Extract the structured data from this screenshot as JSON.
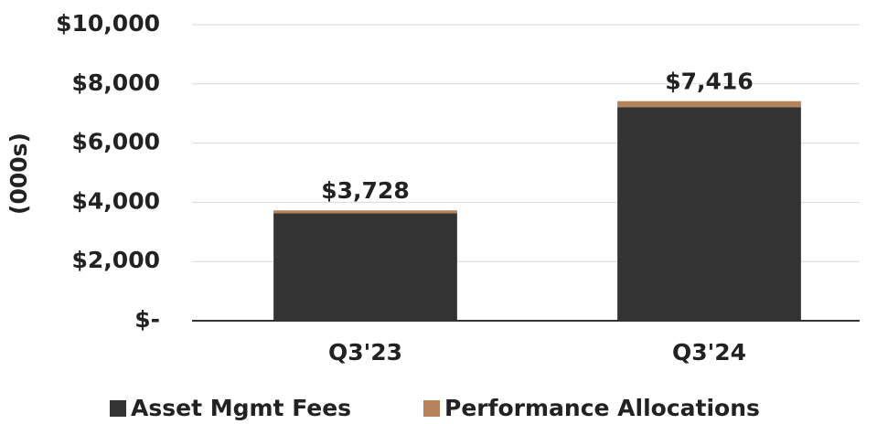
{
  "chart_data": {
    "type": "stacked_bar",
    "y_label": "(000s)",
    "categories": [
      "Q3'23",
      "Q3'24"
    ],
    "series": [
      {
        "name": "Asset Mgmt Fees",
        "color": "#333333",
        "values": [
          3628,
          7216
        ]
      },
      {
        "name": "Performance Allocations",
        "color": "#b5835a",
        "values": [
          100,
          200
        ]
      }
    ],
    "totals": [
      3728,
      7416
    ],
    "total_labels": [
      "$3,728",
      "$7,416"
    ],
    "ylim": [
      0,
      10000
    ],
    "yticks": [
      {
        "value": 0,
        "label": "$-"
      },
      {
        "value": 2000,
        "label": "$2,000"
      },
      {
        "value": 4000,
        "label": "$4,000"
      },
      {
        "value": 6000,
        "label": "$6,000"
      },
      {
        "value": 8000,
        "label": "$8,000"
      },
      {
        "value": 10000,
        "label": "$10,000"
      }
    ],
    "grid": true,
    "legend": "bottom"
  }
}
